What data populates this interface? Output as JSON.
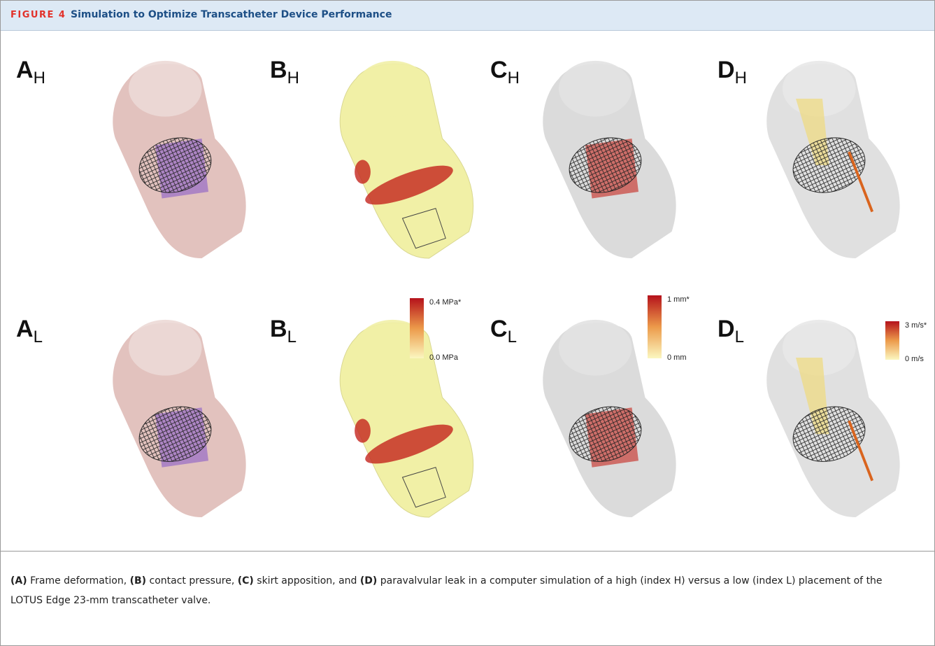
{
  "header": {
    "figure_label": "FIGURE 4",
    "title": "Simulation to Optimize Transcatheter Device Performance"
  },
  "panels": [
    {
      "letter": "A",
      "index": "H"
    },
    {
      "letter": "B",
      "index": "H"
    },
    {
      "letter": "C",
      "index": "H"
    },
    {
      "letter": "D",
      "index": "H"
    },
    {
      "letter": "A",
      "index": "L"
    },
    {
      "letter": "B",
      "index": "L"
    },
    {
      "letter": "C",
      "index": "L"
    },
    {
      "letter": "D",
      "index": "L"
    }
  ],
  "colorbars": [
    {
      "max_label": "0.4 MPa*",
      "min_label": "0.0 MPa"
    },
    {
      "max_label": "1 mm*",
      "min_label": "0 mm"
    },
    {
      "max_label": "3 m/s*",
      "min_label": "0 m/s"
    }
  ],
  "caption": [
    {
      "text": "(A)",
      "bold": true
    },
    {
      "text": " Frame deformation, ",
      "bold": false
    },
    {
      "text": "(B)",
      "bold": true
    },
    {
      "text": " contact pressure, ",
      "bold": false
    },
    {
      "text": "(C)",
      "bold": true
    },
    {
      "text": " skirt apposition, and ",
      "bold": false
    },
    {
      "text": "(D)",
      "bold": true
    },
    {
      "text": " paravalvular leak in a computer simulation of a high (index H) versus a low (index L) placement of the LOTUS Edge 23-mm transcatheter valve.",
      "bold": false
    }
  ]
}
